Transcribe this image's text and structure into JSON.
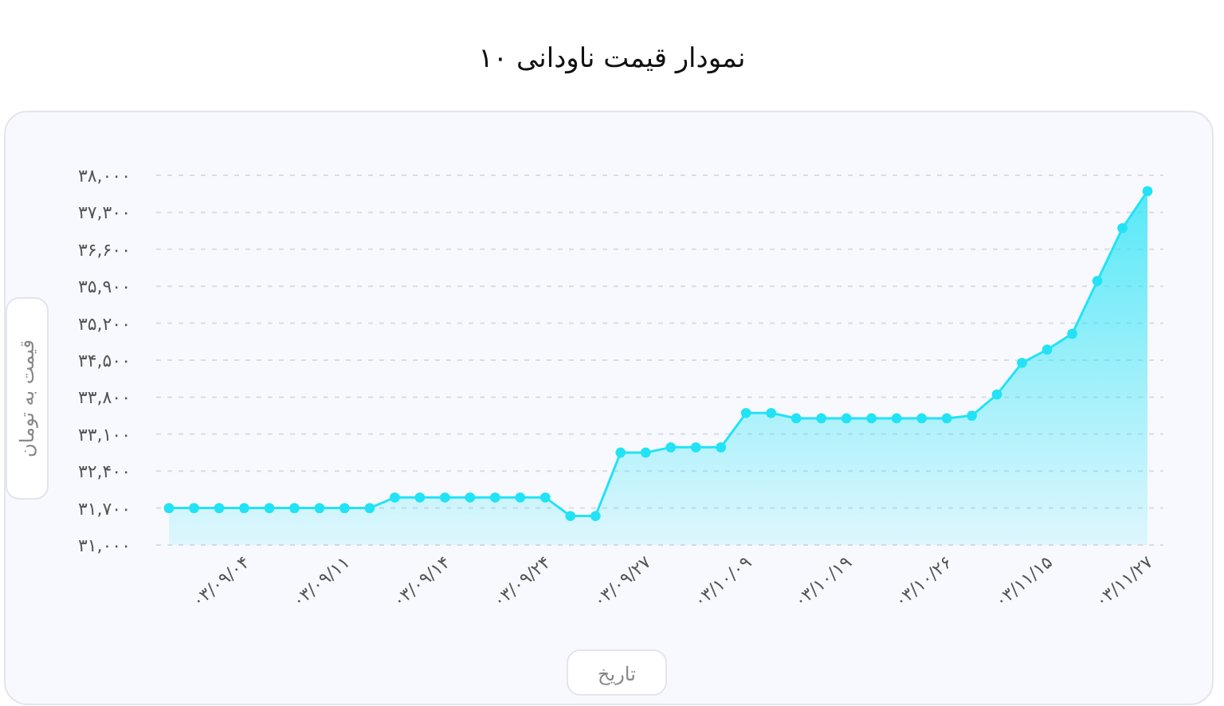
{
  "chart_data": {
    "type": "area",
    "title": "نمودار قیمت ناودانی ۱۰",
    "xlabel": "تاریخ",
    "ylabel": "قیمت به تومان",
    "categories": [
      null,
      null,
      null,
      "۰۳/۰۹/۰۴",
      null,
      null,
      null,
      "۰۳/۰۹/۱۱",
      null,
      null,
      null,
      "۰۳/۰۹/۱۴",
      null,
      null,
      null,
      "۰۳/۰۹/۲۴",
      null,
      null,
      null,
      "۰۳/۰۹/۲۷",
      null,
      null,
      null,
      "۰۳/۱۰/۰۹",
      null,
      null,
      null,
      "۰۳/۱۰/۱۹",
      null,
      null,
      null,
      "۰۳/۱۰/۲۶",
      null,
      null,
      null,
      "۰۳/۱۱/۱۵",
      null,
      null,
      null,
      "۰۳/۱۱/۲۷"
    ],
    "series": [
      {
        "color": "#22e3f5",
        "values": [
          31700,
          31700,
          31700,
          31700,
          31700,
          31700,
          31700,
          31700,
          31700,
          31900,
          31900,
          31900,
          31900,
          31900,
          31900,
          31900,
          31550,
          31550,
          32750,
          32750,
          32850,
          32850,
          32850,
          33500,
          33500,
          33400,
          33400,
          33400,
          33400,
          33400,
          33400,
          33400,
          33450,
          33850,
          34450,
          34700,
          35000,
          36000,
          37000,
          37700
        ]
      }
    ],
    "ylim": [
      31000,
      38000
    ],
    "yticks": [
      {
        "value": 31000,
        "label": "۳۱,۰۰۰"
      },
      {
        "value": 31700,
        "label": "۳۱,۷۰۰"
      },
      {
        "value": 32400,
        "label": "۳۲,۴۰۰"
      },
      {
        "value": 33100,
        "label": "۳۳,۱۰۰"
      },
      {
        "value": 33800,
        "label": "۳۳,۸۰۰"
      },
      {
        "value": 34500,
        "label": "۳۴,۵۰۰"
      },
      {
        "value": 35200,
        "label": "۳۵,۲۰۰"
      },
      {
        "value": 35900,
        "label": "۳۵,۹۰۰"
      },
      {
        "value": 36600,
        "label": "۳۶,۶۰۰"
      },
      {
        "value": 37300,
        "label": "۳۷,۳۰۰"
      },
      {
        "value": 38000,
        "label": "۳۸,۰۰۰"
      }
    ],
    "grid": "y",
    "marker": "circle",
    "line_style": "solid"
  }
}
